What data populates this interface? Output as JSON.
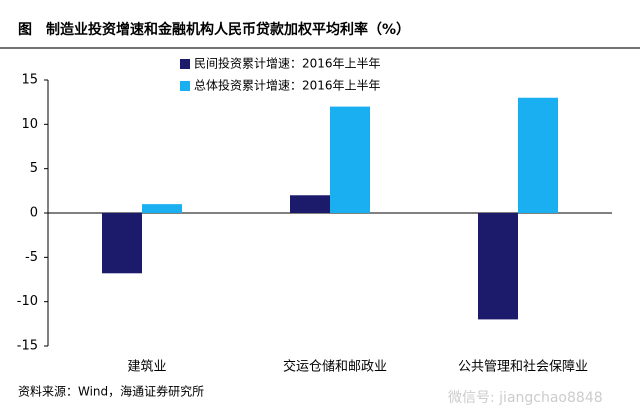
{
  "chart_data": {
    "type": "bar",
    "title": "图　制造业投资增速和金融机构人民币贷款加权平均利率（%）",
    "categories": [
      "建筑业",
      "交运仓储和邮政业",
      "公共管理和社会保障业"
    ],
    "series": [
      {
        "name": "民间投资累计增速：2016年上半年",
        "color": "#1b1a6b",
        "values": [
          -6.8,
          2,
          -12
        ]
      },
      {
        "name": "总体投资累计增速：2016年上半年",
        "color": "#1aaff0",
        "values": [
          1,
          12,
          13
        ]
      }
    ],
    "ylim": [
      -15,
      15
    ],
    "yticks": [
      -15,
      -10,
      -5,
      0,
      5,
      10,
      15
    ],
    "source": "资料来源：Wind，海通证券研究所",
    "watermark": "微信号: jiangchao8848"
  }
}
